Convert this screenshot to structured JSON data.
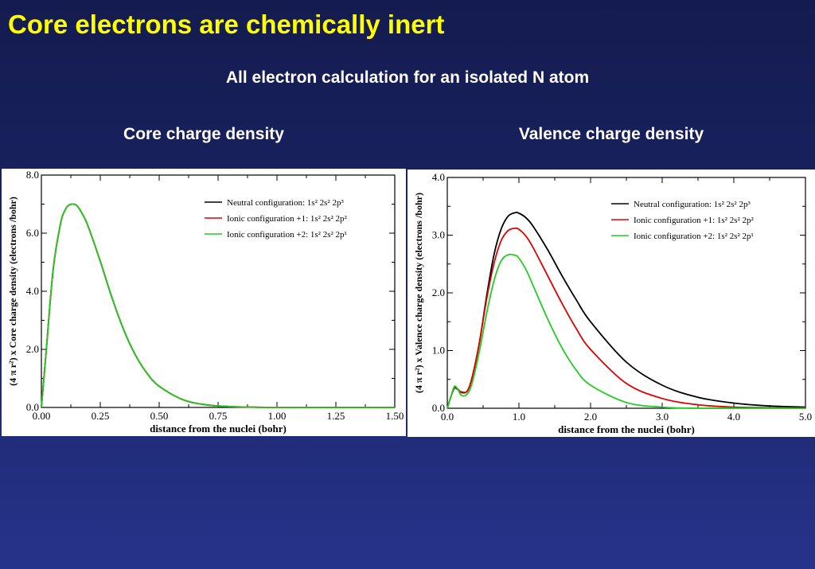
{
  "slide": {
    "title": "Core electrons are chemically inert",
    "subtitle": "All electron calculation for an isolated N atom",
    "left_panel_title": "Core charge density",
    "right_panel_title": "Valence charge density"
  },
  "chart_data": [
    {
      "type": "line",
      "xlabel": "distance from the nuclei (bohr)",
      "ylabel": "(4 π r²) x Core charge density (electrons /bohr)",
      "xlim": [
        0,
        1.5
      ],
      "ylim": [
        0,
        8
      ],
      "xticks": [
        "0.00",
        "0.25",
        "0.50",
        "0.75",
        "1.00",
        "1.25",
        "1.50"
      ],
      "yticks": [
        "0.0",
        "2.0",
        "4.0",
        "6.0",
        "8.0"
      ],
      "legend_position": "top-right",
      "series": [
        {
          "name": "Neutral configuration: 1s² 2s² 2p³",
          "color": "#000000",
          "x": [
            0,
            0.02,
            0.05,
            0.08,
            0.1,
            0.12,
            0.15,
            0.18,
            0.2,
            0.25,
            0.3,
            0.35,
            0.4,
            0.45,
            0.5,
            0.6,
            0.7,
            0.8,
            0.9,
            1.0,
            1.2,
            1.5
          ],
          "y": [
            0,
            1.9,
            4.75,
            6.28,
            6.79,
            6.98,
            6.95,
            6.57,
            6.2,
            5.03,
            3.77,
            2.66,
            1.79,
            1.16,
            0.73,
            0.27,
            0.09,
            0.03,
            0.01,
            0.003,
            0.0,
            0.0
          ]
        },
        {
          "name": "Ionic configuration +1: 1s² 2s² 2p²",
          "color": "#e00000",
          "x": [
            0,
            0.02,
            0.05,
            0.08,
            0.1,
            0.12,
            0.15,
            0.18,
            0.2,
            0.25,
            0.3,
            0.35,
            0.4,
            0.45,
            0.5,
            0.6,
            0.7,
            0.8,
            0.9,
            1.0,
            1.2,
            1.5
          ],
          "y": [
            0,
            1.9,
            4.75,
            6.28,
            6.79,
            6.98,
            6.95,
            6.57,
            6.2,
            5.03,
            3.77,
            2.66,
            1.79,
            1.16,
            0.73,
            0.27,
            0.09,
            0.03,
            0.01,
            0.003,
            0.0,
            0.0
          ]
        },
        {
          "name": "Ionic configuration +2: 1s² 2s² 2p¹",
          "color": "#22cc22",
          "x": [
            0,
            0.02,
            0.05,
            0.08,
            0.1,
            0.12,
            0.15,
            0.18,
            0.2,
            0.25,
            0.3,
            0.35,
            0.4,
            0.45,
            0.5,
            0.6,
            0.7,
            0.8,
            0.9,
            1.0,
            1.2,
            1.5
          ],
          "y": [
            0,
            1.9,
            4.75,
            6.28,
            6.79,
            6.98,
            6.95,
            6.57,
            6.2,
            5.03,
            3.77,
            2.66,
            1.79,
            1.16,
            0.73,
            0.27,
            0.09,
            0.03,
            0.01,
            0.003,
            0.0,
            0.0
          ]
        }
      ]
    },
    {
      "type": "line",
      "xlabel": "distance from the nuclei (bohr)",
      "ylabel": "(4 π r²) x Valence charge density (electrons /bohr)",
      "xlim": [
        0,
        5
      ],
      "ylim": [
        0,
        4
      ],
      "xticks": [
        "0.0",
        "1.0",
        "2.0",
        "3.0",
        "4.0",
        "5.0"
      ],
      "yticks": [
        "0.0",
        "1.0",
        "2.0",
        "3.0",
        "4.0"
      ],
      "legend_position": "top-right",
      "series": [
        {
          "name": "Neutral configuration: 1s² 2s² 2p³",
          "color": "#000000",
          "x": [
            0,
            0.05,
            0.1,
            0.15,
            0.2,
            0.28,
            0.35,
            0.45,
            0.55,
            0.65,
            0.75,
            0.85,
            0.95,
            1.0,
            1.1,
            1.2,
            1.4,
            1.6,
            1.8,
            2.0,
            2.5,
            3.0,
            3.5,
            4.0,
            4.5,
            5.0
          ],
          "y": [
            0,
            0.2,
            0.35,
            0.32,
            0.28,
            0.3,
            0.55,
            1.15,
            1.95,
            2.65,
            3.1,
            3.33,
            3.39,
            3.38,
            3.3,
            3.15,
            2.75,
            2.3,
            1.88,
            1.5,
            0.8,
            0.4,
            0.19,
            0.09,
            0.04,
            0.02
          ]
        },
        {
          "name": "Ionic configuration +1: 1s² 2s² 2p²",
          "color": "#e00000",
          "x": [
            0,
            0.05,
            0.1,
            0.15,
            0.2,
            0.28,
            0.35,
            0.45,
            0.55,
            0.65,
            0.75,
            0.85,
            0.95,
            1.0,
            1.1,
            1.2,
            1.4,
            1.6,
            1.8,
            2.0,
            2.5,
            3.0,
            3.5,
            4.0,
            4.5,
            5.0
          ],
          "y": [
            0,
            0.2,
            0.36,
            0.33,
            0.27,
            0.3,
            0.55,
            1.15,
            1.9,
            2.5,
            2.9,
            3.08,
            3.12,
            3.1,
            2.98,
            2.78,
            2.3,
            1.82,
            1.38,
            1.02,
            0.43,
            0.17,
            0.06,
            0.02,
            0.01,
            0.0
          ]
        },
        {
          "name": "Ionic configuration +2: 1s² 2s² 2p¹",
          "color": "#22cc22",
          "x": [
            0,
            0.05,
            0.1,
            0.15,
            0.2,
            0.28,
            0.35,
            0.45,
            0.55,
            0.65,
            0.75,
            0.85,
            0.95,
            1.0,
            1.1,
            1.2,
            1.4,
            1.6,
            1.8,
            2.0,
            2.5,
            3.0,
            3.5,
            4.0,
            4.5,
            5.0
          ],
          "y": [
            0,
            0.2,
            0.38,
            0.32,
            0.22,
            0.25,
            0.45,
            1.0,
            1.65,
            2.2,
            2.55,
            2.66,
            2.65,
            2.6,
            2.4,
            2.12,
            1.55,
            1.05,
            0.66,
            0.4,
            0.1,
            0.02,
            0.0,
            0.0,
            0.0,
            0.0
          ]
        }
      ]
    }
  ]
}
